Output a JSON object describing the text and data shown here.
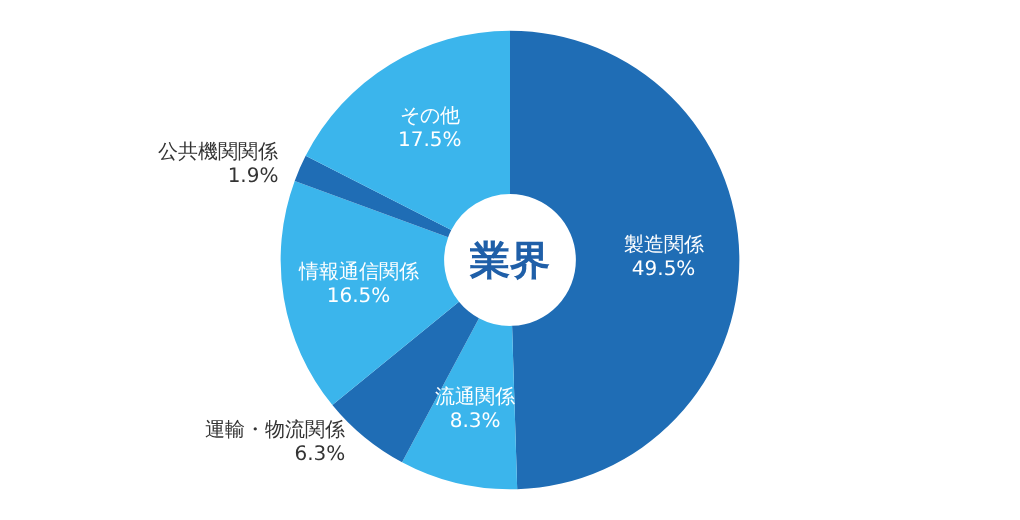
{
  "chart_data": {
    "type": "donut",
    "title": "業界",
    "categories": [
      "製造関係",
      "流通関係",
      "運輸・物流関係",
      "情報通信関係",
      "公共機関関係",
      "その他"
    ],
    "values": [
      49.5,
      8.3,
      6.3,
      16.5,
      1.9,
      17.5
    ],
    "value_labels": [
      "49.5%",
      "8.3%",
      "6.3%",
      "16.5%",
      "1.9%",
      "17.5%"
    ],
    "colors": [
      "#1f6db5",
      "#3bb5ec",
      "#1f6db5",
      "#3bb5ec",
      "#1f6db5",
      "#3bb5ec"
    ],
    "legend": false
  }
}
